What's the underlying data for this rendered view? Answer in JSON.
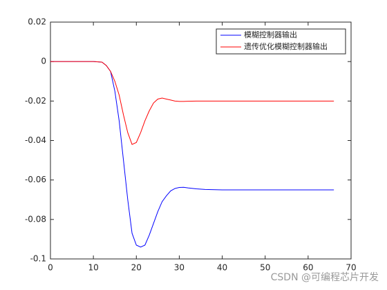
{
  "chart_data": {
    "type": "line",
    "x": [
      0,
      5,
      10,
      12,
      13,
      14,
      15,
      16,
      17,
      18,
      19,
      20,
      21,
      22,
      23,
      24,
      25,
      26,
      27,
      28,
      29,
      30,
      31,
      32,
      34,
      36,
      40,
      50,
      66
    ],
    "series": [
      {
        "name": "模糊控制器输出",
        "color": "#0000ff",
        "values": [
          0,
          0,
          0,
          -0.0003,
          -0.002,
          -0.005,
          -0.015,
          -0.03,
          -0.05,
          -0.07,
          -0.087,
          -0.093,
          -0.094,
          -0.093,
          -0.088,
          -0.082,
          -0.076,
          -0.071,
          -0.068,
          -0.0655,
          -0.0643,
          -0.0638,
          -0.0637,
          -0.064,
          -0.0645,
          -0.0648,
          -0.065,
          -0.065,
          -0.065
        ]
      },
      {
        "name": "遗传优化模糊控制器输出",
        "color": "#ff0000",
        "values": [
          0,
          0,
          0,
          -0.0003,
          -0.002,
          -0.005,
          -0.01,
          -0.017,
          -0.027,
          -0.036,
          -0.042,
          -0.041,
          -0.036,
          -0.03,
          -0.025,
          -0.021,
          -0.019,
          -0.0185,
          -0.019,
          -0.0195,
          -0.02,
          -0.0202,
          -0.0202,
          -0.0201,
          -0.02,
          -0.02,
          -0.02,
          -0.02,
          -0.02
        ]
      }
    ],
    "xlim": [
      0,
      70
    ],
    "xticks": [
      0,
      10,
      20,
      30,
      40,
      50,
      60,
      70
    ],
    "ylim": [
      -0.1,
      0.02
    ],
    "yticks": [
      -0.1,
      -0.08,
      -0.06,
      -0.04,
      -0.02,
      0,
      0.02
    ],
    "legend": "northeast",
    "watermark": "CSDN @可编程芯片开发"
  }
}
